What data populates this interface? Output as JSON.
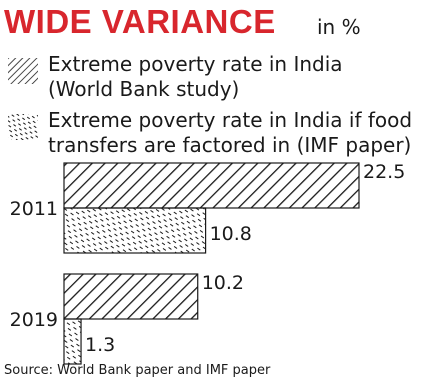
{
  "header": {
    "title": "WIDE VARIANCE",
    "unit": "in %"
  },
  "legend": [
    {
      "label": "Extreme poverty rate in India\n(World Bank study)",
      "pattern": "diagonal-hatch"
    },
    {
      "label": "Extreme poverty rate in India if food\ntransfers are factored in (IMF paper)",
      "pattern": "dashed-dots"
    }
  ],
  "chart_data": {
    "type": "bar",
    "orientation": "horizontal",
    "categories": [
      "2011",
      "2019"
    ],
    "series": [
      {
        "name": "Extreme poverty rate in India (World Bank study)",
        "values": [
          22.5,
          10.2
        ]
      },
      {
        "name": "Extreme poverty rate in India if food transfers are factored in (IMF paper)",
        "values": [
          10.8,
          1.3
        ]
      }
    ],
    "xlim": [
      0,
      22.5
    ],
    "grid": false,
    "legend_placement": "top-left"
  },
  "source": "Source: World Bank paper and IMF paper",
  "colors": {
    "title": "#d8262d",
    "ink": "#1a1a1a"
  }
}
